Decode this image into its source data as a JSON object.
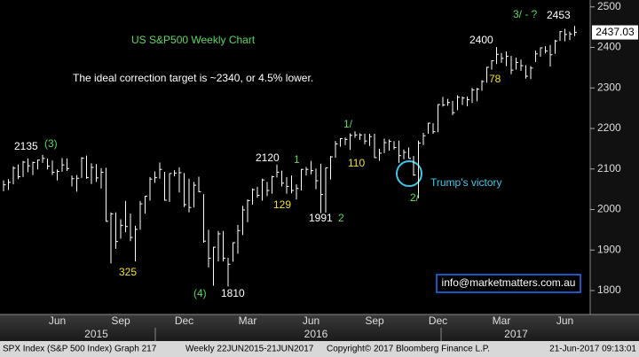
{
  "chart_data": {
    "type": "ohlc",
    "color": "#ffffff",
    "categories": [
      null,
      null,
      null,
      null,
      null,
      null,
      null,
      null,
      null,
      null,
      null,
      "Jun",
      null,
      null,
      null,
      null,
      null,
      null,
      null,
      null,
      null,
      null,
      null,
      null,
      "Sep",
      null,
      null,
      null,
      null,
      null,
      null,
      null,
      null,
      null,
      null,
      null,
      null,
      "Dec",
      null,
      null,
      null,
      null,
      null,
      null,
      null,
      null,
      null,
      null,
      null,
      null,
      "Mar",
      null,
      null,
      null,
      null,
      null,
      null,
      null,
      null,
      null,
      null,
      null,
      null,
      "Jun",
      null,
      null,
      null,
      null,
      null,
      null,
      null,
      null,
      null,
      null,
      null,
      null,
      "Sep",
      null,
      null,
      null,
      null,
      null,
      null,
      null,
      null,
      null,
      null,
      null,
      null,
      "Dec",
      null,
      null,
      null,
      null,
      null,
      null,
      null,
      null,
      null,
      null,
      null,
      null,
      "Mar",
      null,
      null,
      null,
      null,
      null,
      null,
      null,
      null,
      null,
      null,
      null,
      null,
      "Jun",
      null,
      null
    ],
    "years": [
      null,
      null,
      null,
      null,
      null,
      null,
      null,
      null,
      null,
      null,
      null,
      null,
      null,
      null,
      null,
      null,
      null,
      null,
      null,
      "2015",
      null,
      null,
      null,
      null,
      null,
      null,
      null,
      null,
      null,
      null,
      null,
      null,
      null,
      null,
      null,
      null,
      null,
      null,
      null,
      null,
      null,
      null,
      null,
      null,
      null,
      null,
      null,
      null,
      null,
      null,
      null,
      null,
      null,
      null,
      null,
      null,
      null,
      null,
      null,
      null,
      null,
      null,
      null,
      null,
      "2016",
      null,
      null,
      null,
      null,
      null,
      null,
      null,
      null,
      null,
      null,
      null,
      null,
      null,
      null,
      null,
      null,
      null,
      null,
      null,
      null,
      null,
      null,
      null,
      null,
      null,
      null,
      null,
      null,
      null,
      null,
      null,
      null,
      null,
      null,
      null,
      null,
      null,
      null,
      null,
      null,
      "2017",
      null,
      null,
      null,
      null,
      null,
      null,
      null,
      null,
      null,
      null,
      null,
      null
    ],
    "high": [
      2072,
      2075,
      2107,
      2111,
      2120,
      2126,
      2118,
      2123,
      2135,
      2126,
      2121,
      2099,
      2127,
      2126,
      2084,
      2085,
      2129,
      2133,
      2114,
      2112,
      2102,
      2103,
      1993,
      1993,
      1976,
      2021,
      1990,
      1960,
      2021,
      2034,
      2080,
      2094,
      2116,
      2093,
      2089,
      2097,
      2104,
      2090,
      2076,
      2068,
      2081,
      2038,
      1950,
      1908,
      1947,
      1947,
      1881,
      1919,
      1962,
      2009,
      2025,
      2052,
      2056,
      2076,
      2068,
      2083,
      2111,
      2096,
      2080,
      2084,
      2062,
      2100,
      2105,
      2120,
      2101,
      2113,
      2103,
      2132,
      2169,
      2176,
      2178,
      2188,
      2193,
      2188,
      2187,
      2187,
      2187,
      2150,
      2175,
      2173,
      2169,
      2170,
      2148,
      2153,
      2132,
      2170,
      2189,
      2214,
      2213,
      2260,
      2278,
      2273,
      2268,
      2282,
      2279,
      2279,
      2300,
      2300,
      2319,
      2352,
      2368,
      2401,
      2386,
      2390,
      2379,
      2375,
      2370,
      2356,
      2354,
      2392,
      2400,
      2403,
      2406,
      2419,
      2440,
      2446,
      2439,
      2453
    ],
    "low": [
      2045,
      2048,
      2062,
      2075,
      2080,
      2092,
      2085,
      2099,
      2115,
      2099,
      2085,
      2072,
      2093,
      2095,
      2057,
      2044,
      2078,
      2076,
      2063,
      2068,
      2052,
      1970,
      1867,
      1903,
      1928,
      1944,
      1922,
      1872,
      1950,
      1990,
      2022,
      2066,
      2076,
      2022,
      2019,
      2082,
      2042,
      2006,
      1993,
      2005,
      2043,
      1918,
      1857,
      1812,
      1872,
      1872,
      1810,
      1871,
      1891,
      1937,
      1969,
      2012,
      2029,
      2022,
      2033,
      2039,
      2079,
      2057,
      2039,
      2040,
      2025,
      2047,
      2084,
      2087,
      2050,
      1991,
      1992,
      2074,
      2128,
      2155,
      2159,
      2147,
      2177,
      2172,
      2161,
      2157,
      2127,
      2120,
      2139,
      2145,
      2148,
      2115,
      2124,
      2126,
      2083,
      2028,
      2159,
      2187,
      2187,
      2191,
      2254,
      2256,
      2233,
      2245,
      2258,
      2255,
      2263,
      2267,
      2293,
      2313,
      2345,
      2359,
      2362,
      2354,
      2334,
      2345,
      2342,
      2323,
      2322,
      2364,
      2377,
      2385,
      2353,
      2384,
      2416,
      2415,
      2418,
      2428
    ],
    "close": [
      2061,
      2067,
      2102,
      2081,
      2117,
      2108,
      2116,
      2122,
      2126,
      2107,
      2092,
      2094,
      2110,
      2101,
      2076,
      2077,
      2127,
      2079,
      2104,
      2078,
      2092,
      1971,
      1989,
      1921,
      1961,
      1958,
      1931,
      1951,
      2014,
      2033,
      2075,
      2079,
      2099,
      2023,
      2089,
      2090,
      2091,
      2012,
      2005,
      2060,
      2044,
      1922,
      1880,
      1907,
      1940,
      1880,
      1865,
      1918,
      1948,
      1999,
      2022,
      2049,
      2035,
      2073,
      2047,
      2081,
      2092,
      2065,
      2057,
      2047,
      2052,
      2099,
      2099,
      2096,
      2071,
      2037,
      2103,
      2130,
      2162,
      2175,
      2173,
      2183,
      2184,
      2184,
      2169,
      2180,
      2128,
      2139,
      2165,
      2168,
      2153,
      2133,
      2141,
      2126,
      2085,
      2164,
      2182,
      2213,
      2192,
      2259,
      2258,
      2264,
      2239,
      2277,
      2275,
      2271,
      2295,
      2297,
      2316,
      2351,
      2367,
      2383,
      2373,
      2378,
      2344,
      2363,
      2355,
      2329,
      2349,
      2384,
      2399,
      2391,
      2382,
      2416,
      2439,
      2432,
      2433,
      2437.03
    ],
    "ylim": [
      1741,
      2517
    ],
    "yticks": [
      1800,
      1900,
      2000,
      2100,
      2200,
      2300,
      2400,
      2500
    ],
    "annotations": [
      {
        "text": "US S&P500 Weekly Chart",
        "color": "#5ad85a"
      },
      {
        "text": "The ideal correction target is ~2340, or 4.5% lower.",
        "color": "#ffffff"
      },
      {
        "text": "2135",
        "color": "#ffffff"
      },
      {
        "text": "(3)",
        "color": "#5ad85a"
      },
      {
        "text": "325",
        "color": "#f0e020"
      },
      {
        "text": "(4)",
        "color": "#5ad85a"
      },
      {
        "text": "1810",
        "color": "#ffffff"
      },
      {
        "text": "2120",
        "color": "#ffffff"
      },
      {
        "text": "1",
        "color": "#5ad85a"
      },
      {
        "text": "129",
        "color": "#f0e020"
      },
      {
        "text": "1991",
        "color": "#ffffff"
      },
      {
        "text": "2",
        "color": "#5ad85a"
      },
      {
        "text": "1/",
        "color": "#5ad85a"
      },
      {
        "text": "110",
        "color": "#f0e020"
      },
      {
        "text": "Trump's victory",
        "color": "#3cc8e8"
      },
      {
        "text": "2/",
        "color": "#5ad85a"
      },
      {
        "text": "2400",
        "color": "#ffffff"
      },
      {
        "text": "78",
        "color": "#f0e020"
      },
      {
        "text": "3/ - ?",
        "color": "#5ad85a"
      },
      {
        "text": "2453",
        "color": "#ffffff"
      }
    ],
    "watermark": "info@marketmatters.com.au",
    "footer": [
      "SPX Index (S&P 500 Index) Graph 217",
      "Weekly 22JUN2015-21JUN2017",
      "Copyright© 2017 Bloomberg Finance L.P.",
      "21-Jun-2017 09:13:01"
    ]
  }
}
